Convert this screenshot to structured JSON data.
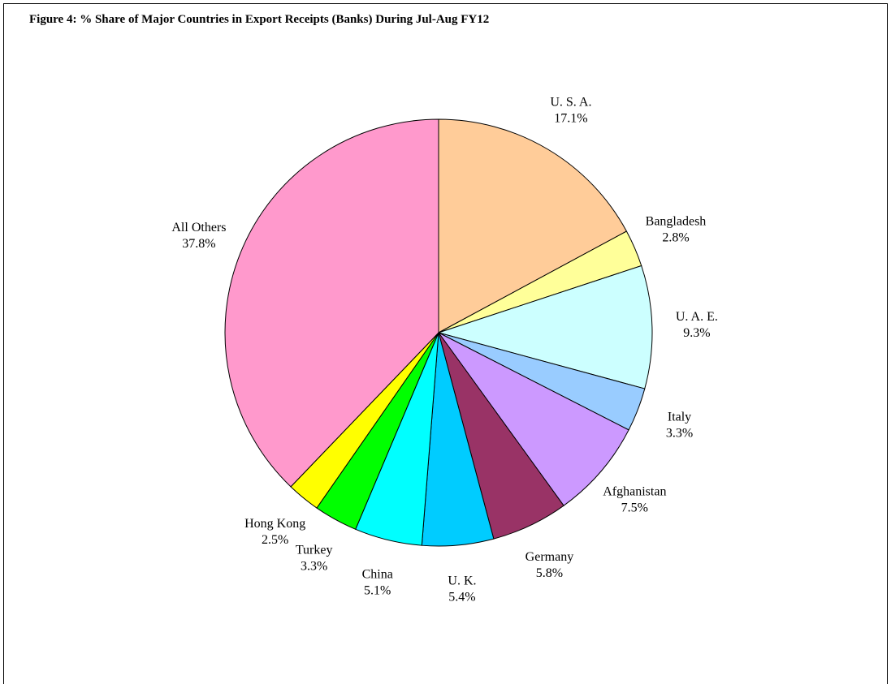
{
  "chart_data": {
    "type": "pie",
    "title": "Figure 4: % Share of Major Countries in Export Receipts (Banks) During Jul-Aug FY12",
    "categories": [
      "U. S. A.",
      "Bangladesh",
      "U. A. E.",
      "Italy",
      "Afghanistan",
      "Germany",
      "U. K.",
      "China",
      "Turkey",
      "Hong Kong",
      "All Others"
    ],
    "values": [
      17.1,
      2.8,
      9.3,
      3.3,
      7.5,
      5.8,
      5.4,
      5.1,
      3.3,
      2.5,
      37.8
    ],
    "value_labels": [
      "17.1%",
      "2.8%",
      "9.3%",
      "3.3%",
      "7.5%",
      "5.8%",
      "5.4%",
      "5.1%",
      "3.3%",
      "2.5%",
      "37.8%"
    ],
    "colors": [
      "#ffcc99",
      "#ffff99",
      "#ccffff",
      "#99ccff",
      "#cc99ff",
      "#993366",
      "#00ccff",
      "#00ffff",
      "#00ff00",
      "#ffff00",
      "#ff99cc"
    ]
  }
}
